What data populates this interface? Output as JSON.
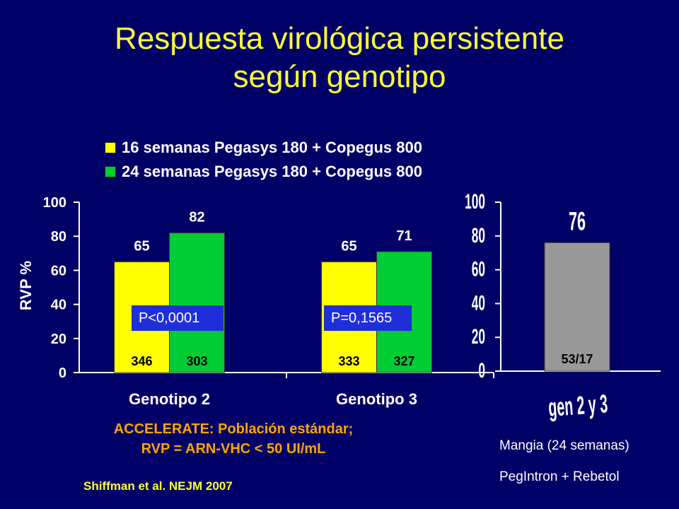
{
  "title": {
    "line1": "Respuesta virológica persistente",
    "line2": "según genotipo"
  },
  "colors": {
    "background": "#000066",
    "title": "#ffff33",
    "series1": "#ffff00",
    "series2": "#00cc33",
    "series3": "#999999",
    "pbox": "#1f2fd8",
    "study": "#ffa500"
  },
  "chart_data": [
    {
      "type": "bar",
      "categories": [
        "Genotipo 2",
        "Genotipo 3"
      ],
      "series": [
        {
          "name": "16 semanas Pegasys 180 + Copegus 800",
          "values": [
            65,
            65
          ],
          "n_labels": [
            "346",
            "333"
          ]
        },
        {
          "name": "24 semanas Pegasys 180 + Copegus 800",
          "values": [
            82,
            71
          ],
          "n_labels": [
            "303",
            "327"
          ]
        }
      ],
      "p_values": [
        "P<0,0001",
        "P=0,1565"
      ],
      "ylabel": "RVP %",
      "ylim": [
        0,
        100
      ],
      "yticks": [
        "0",
        "20",
        "40",
        "60",
        "80",
        "100"
      ],
      "legend": "top"
    },
    {
      "type": "bar",
      "categories": [
        "gen 2 y 3"
      ],
      "values": [
        76
      ],
      "bar_label": "53/17",
      "ylim": [
        0,
        100
      ],
      "yticks": [
        "0",
        "20",
        "40",
        "60",
        "80",
        "100"
      ]
    }
  ],
  "footer": {
    "study_line1": "ACCELERATE: Población estándar;",
    "study_line2": "RVP = ARN-VHC < 50 UI/mL",
    "citation": "Shiffman et al. NEJM 2007",
    "right_line1": "Mangia (24 semanas)",
    "right_line2": "PegIntron + Rebetol"
  }
}
